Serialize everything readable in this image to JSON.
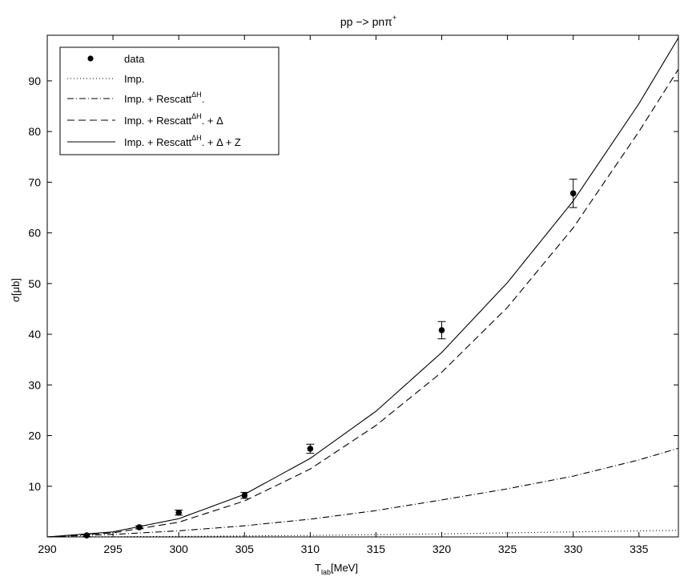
{
  "chart_data": {
    "type": "line",
    "title": {
      "base": "pp −> pnπ",
      "sup": "+"
    },
    "xlabel": {
      "base": "T",
      "sub": "lab",
      "unit": "[MeV]"
    },
    "ylabel": "σ[μb]",
    "xlim": [
      290,
      338
    ],
    "ylim": [
      0,
      99
    ],
    "xticks": [
      290,
      295,
      300,
      305,
      310,
      315,
      320,
      325,
      330,
      335
    ],
    "yticks": [
      10,
      20,
      30,
      40,
      50,
      60,
      70,
      80,
      90
    ],
    "grid": false,
    "legend_position": "top-left",
    "data_points": [
      {
        "x": 293,
        "y": 0.3,
        "err": 0.2
      },
      {
        "x": 297,
        "y": 1.9,
        "err": 0.3
      },
      {
        "x": 300,
        "y": 4.8,
        "err": 0.5
      },
      {
        "x": 305,
        "y": 8.2,
        "err": 0.6
      },
      {
        "x": 310,
        "y": 17.4,
        "err": 0.9
      },
      {
        "x": 320,
        "y": 40.8,
        "err": 1.7
      },
      {
        "x": 330,
        "y": 67.8,
        "err": 2.8
      }
    ],
    "series": [
      {
        "name": "data",
        "label": "data",
        "style": "marker"
      },
      {
        "name": "Imp.",
        "label": "Imp.",
        "style": "dotted",
        "x": [
          290,
          300,
          310,
          320,
          330,
          338
        ],
        "y": [
          0,
          0.1,
          0.3,
          0.6,
          1.0,
          1.3
        ]
      },
      {
        "name": "Imp. + Rescatt^ΔH.",
        "label": "Imp. + Rescatt",
        "sup": "ΔH",
        "suffix": ".",
        "style": "dashdot",
        "x": [
          290,
          295,
          300,
          305,
          310,
          315,
          320,
          325,
          330,
          335,
          338
        ],
        "y": [
          0,
          0.5,
          1.2,
          2.2,
          3.5,
          5.2,
          7.3,
          9.5,
          12.0,
          15.2,
          17.5
        ]
      },
      {
        "name": "Imp. + Rescatt^ΔH. + Δ",
        "label": "Imp. + Rescatt",
        "sup": "ΔH",
        "suffix": ". + Δ",
        "style": "dashed",
        "x": [
          290,
          295,
          300,
          305,
          310,
          315,
          320,
          325,
          330,
          335,
          338
        ],
        "y": [
          0,
          0.8,
          2.9,
          7.1,
          13.4,
          22.0,
          32.5,
          45.3,
          61.0,
          80.0,
          92.3
        ]
      },
      {
        "name": "Imp. + Rescatt^ΔH. + Δ + Z",
        "label": "Imp. + Rescatt",
        "sup": "ΔH",
        "suffix": ". + Δ + Z",
        "style": "solid",
        "x": [
          290,
          295,
          300,
          305,
          310,
          315,
          320,
          325,
          330,
          335,
          338
        ],
        "y": [
          0,
          1.0,
          3.6,
          8.4,
          15.5,
          24.8,
          36.4,
          50.2,
          66.3,
          85.5,
          98.5
        ]
      }
    ]
  }
}
